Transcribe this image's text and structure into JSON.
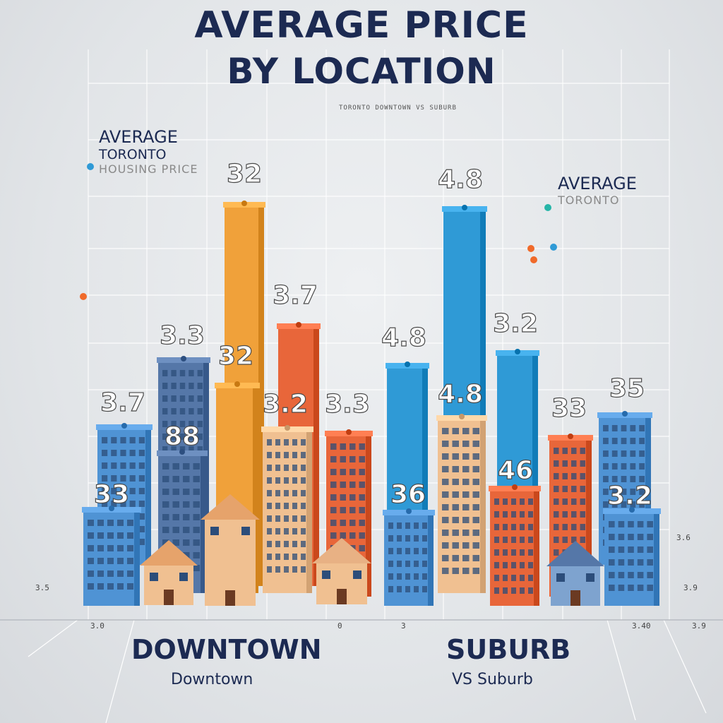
{
  "title_line1": "AVERAGE PRICE",
  "title_line2": "BY LOCATION",
  "subtitle": "TORONTO DOWNTOWN VS SUBURB",
  "annotation_left": {
    "line1": "AVERAGE",
    "line2": "TORONTO",
    "line3": "HOUSING PRICE"
  },
  "annotation_right": {
    "line1": "AVERAGE",
    "line2": "TORONTO"
  },
  "category_main": {
    "downtown": "DOWNTOWN",
    "suburb": "SUBURB"
  },
  "category_sub": {
    "downtown": "Downtown",
    "suburb": "VS Suburb"
  },
  "axis_texts": [
    "3.0",
    "0",
    "3",
    "3.40",
    "3.9",
    "3.5",
    "3.6",
    "3.9"
  ],
  "colors": {
    "blue": "#4f93d4",
    "orange": "#f0a13a",
    "red_orange": "#e8663a",
    "teal": "#2f9ad6",
    "slate": "#5577a8",
    "tan": "#f0c091",
    "title": "#1c2a52"
  },
  "chart_data": {
    "type": "bar",
    "title": "AVERAGE PRICE BY LOCATION",
    "groups": [
      "DOWNTOWN",
      "SUBURB"
    ],
    "bars": [
      {
        "label": "3.7",
        "value": 3.7,
        "color": "#4f93d4",
        "group": "DOWNTOWN"
      },
      {
        "label": "33",
        "value": 3.3,
        "color": "#4f93d4",
        "group": "DOWNTOWN"
      },
      {
        "label": "3.3",
        "value": 3.3,
        "color": "#5577a8",
        "group": "DOWNTOWN"
      },
      {
        "label": "88",
        "value": 8.8,
        "color": "#5577a8",
        "group": "DOWNTOWN"
      },
      {
        "label": "32",
        "value": 3.2,
        "color": "#f0a13a",
        "group": "DOWNTOWN"
      },
      {
        "label": "32",
        "value": 3.2,
        "color": "#f0a13a",
        "group": "DOWNTOWN"
      },
      {
        "label": "3.7",
        "value": 3.7,
        "color": "#e8663a",
        "group": "DOWNTOWN"
      },
      {
        "label": "3.2",
        "value": 3.2,
        "color": "#f0c091",
        "group": "DOWNTOWN"
      },
      {
        "label": "3.3",
        "value": 3.3,
        "color": "#e8663a",
        "group": "DOWNTOWN"
      },
      {
        "label": "4.8",
        "value": 4.8,
        "color": "#2f9ad6",
        "group": "SUBURB"
      },
      {
        "label": "36",
        "value": 3.6,
        "color": "#4f93d4",
        "group": "SUBURB"
      },
      {
        "label": "4.8",
        "value": 4.8,
        "color": "#2f9ad6",
        "group": "SUBURB"
      },
      {
        "label": "4.8",
        "value": 4.8,
        "color": "#f0c091",
        "group": "SUBURB"
      },
      {
        "label": "3.2",
        "value": 3.2,
        "color": "#2f9ad6",
        "group": "SUBURB"
      },
      {
        "label": "46",
        "value": 4.6,
        "color": "#e8663a",
        "group": "SUBURB"
      },
      {
        "label": "33",
        "value": 3.3,
        "color": "#e8663a",
        "group": "SUBURB"
      },
      {
        "label": "3.2",
        "value": 3.2,
        "color": "#4f93d4",
        "group": "SUBURB"
      },
      {
        "label": "35",
        "value": 3.5,
        "color": "#4f93d4",
        "group": "SUBURB"
      }
    ]
  }
}
